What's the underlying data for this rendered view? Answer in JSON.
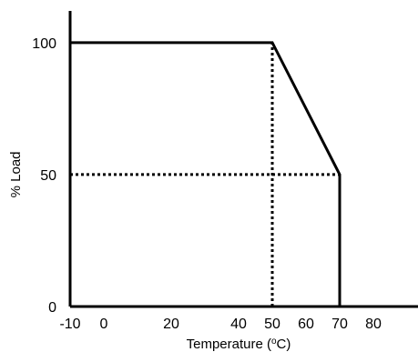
{
  "chart_data": {
    "type": "line",
    "title": "",
    "xlabel": {
      "prefix": "Temperature (",
      "superscript": "o",
      "suffix": "C)"
    },
    "ylabel": "% Load",
    "xlim": [
      -10,
      90
    ],
    "ylim": [
      0,
      112
    ],
    "x_ticks": [
      {
        "value": -10,
        "label": "-10",
        "color": "#000000"
      },
      {
        "value": 0,
        "label": "0",
        "color": "#000000"
      },
      {
        "value": 20,
        "label": "20",
        "color": "#000000"
      },
      {
        "value": 40,
        "label": "40",
        "color": "#000000"
      },
      {
        "value": 50,
        "label": "50",
        "color": "#e02020"
      },
      {
        "value": 60,
        "label": "60",
        "color": "#000000"
      },
      {
        "value": 70,
        "label": "70",
        "color": "#e02020"
      },
      {
        "value": 80,
        "label": "80",
        "color": "#000000"
      }
    ],
    "y_ticks": [
      {
        "value": 0,
        "label": "0"
      },
      {
        "value": 50,
        "label": "50"
      },
      {
        "value": 100,
        "label": "100"
      }
    ],
    "series": [
      {
        "style": "solid",
        "points": [
          [
            -10,
            100
          ],
          [
            50,
            100
          ],
          [
            70,
            50
          ],
          [
            70,
            0
          ]
        ]
      }
    ],
    "guides": [
      {
        "style": "dotted",
        "points": [
          [
            50,
            0
          ],
          [
            50,
            100
          ]
        ]
      },
      {
        "style": "dotted",
        "points": [
          [
            -10,
            50
          ],
          [
            70,
            50
          ]
        ]
      }
    ],
    "grid": false,
    "legend": "none",
    "colors": {
      "line": "#000000",
      "highlight": "#e02020"
    }
  }
}
